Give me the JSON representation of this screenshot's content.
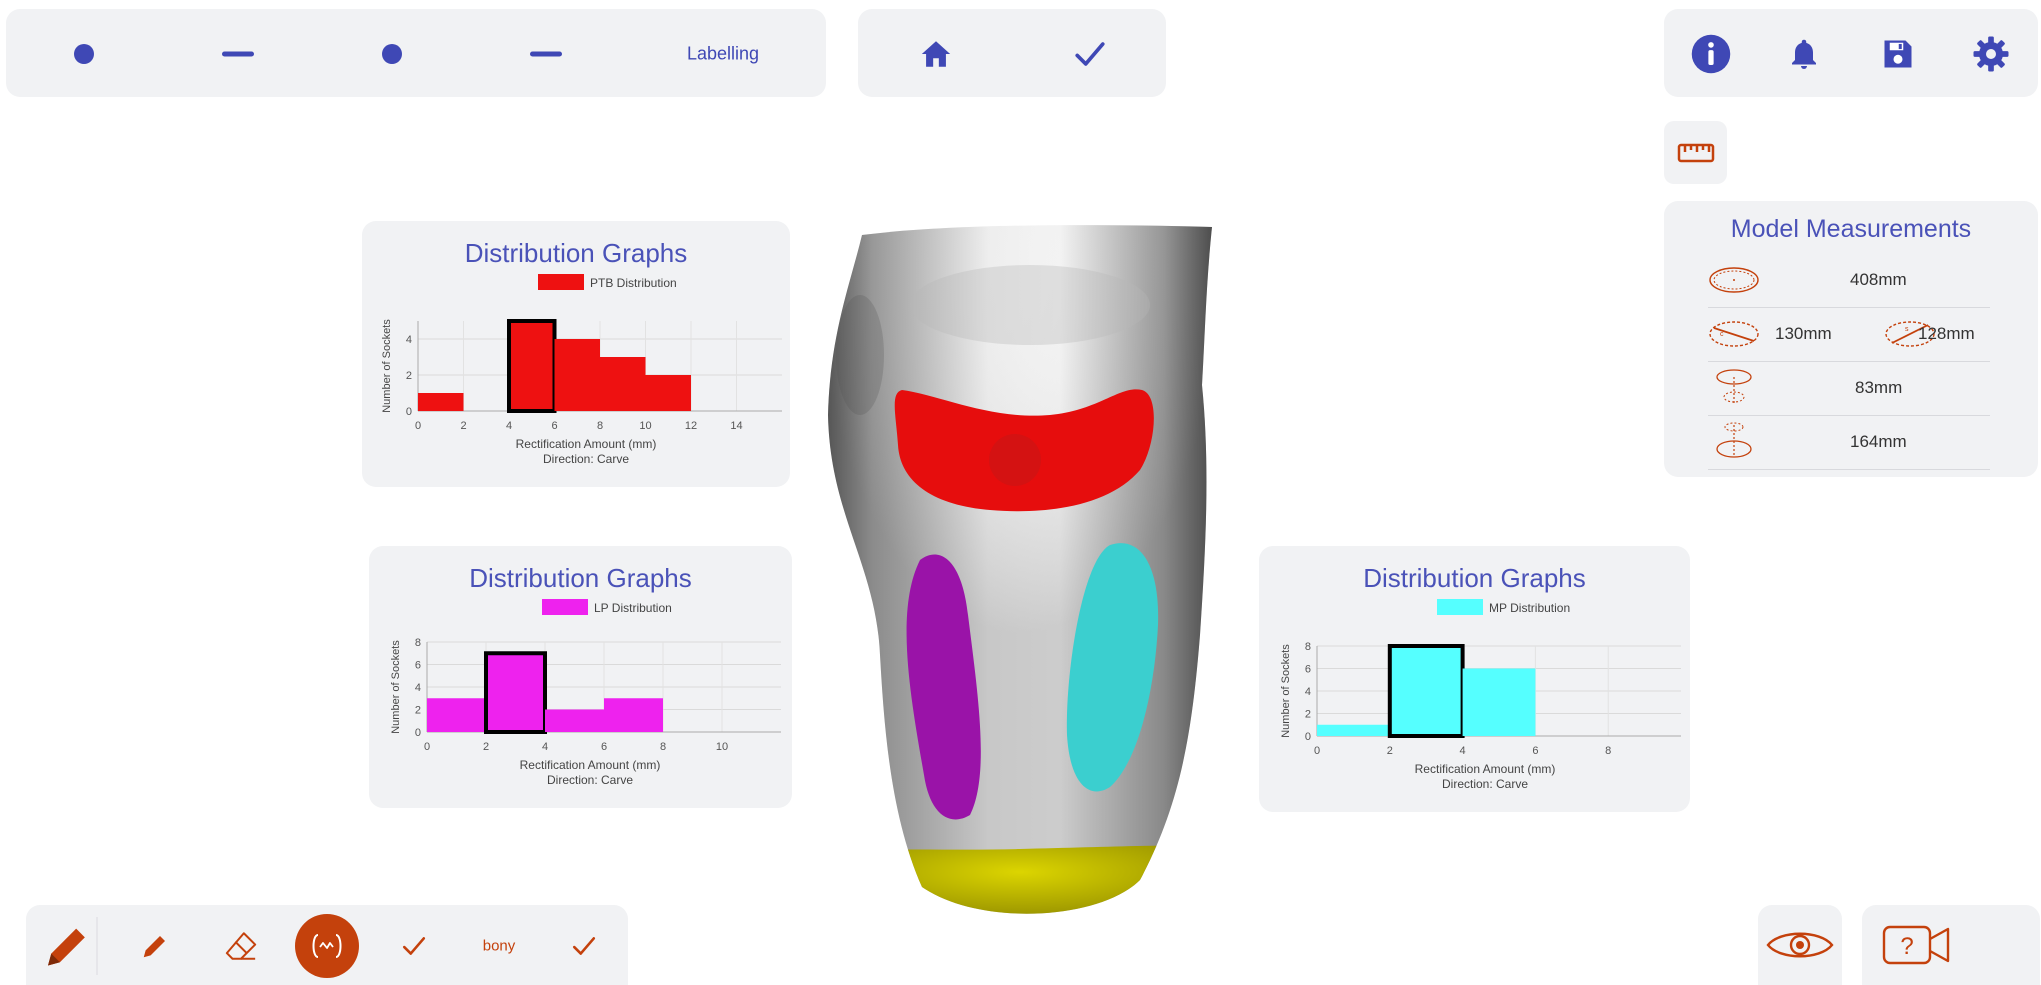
{
  "top_bar": {
    "steps": [
      "dot",
      "dash",
      "dot",
      "dash"
    ],
    "label": "Labelling"
  },
  "icons": {
    "home": "home-icon",
    "confirm": "check-icon",
    "info": "info-icon",
    "notifications": "bell-icon",
    "save": "save-icon",
    "settings": "gear-icon",
    "ruler": "ruler-icon",
    "visibility": "eye-icon",
    "help_video": "help-video-icon"
  },
  "bottom_toolbar": {
    "tools": [
      "pencil-large-icon",
      "pencil-small-icon",
      "eraser-icon",
      "region-select-icon",
      "check-icon"
    ],
    "label": "bony",
    "active_tool": "region-select-icon"
  },
  "colors": {
    "accent": "#3f48b5",
    "tool_orange": "#c4410c",
    "ptb": "#ee1111",
    "lp": "#ee22ee",
    "mp": "#55ffff",
    "highlight_border": "#000000",
    "panel_bg": "#f1f2f4"
  },
  "measurements": {
    "title": "Model Measurements",
    "rows": [
      {
        "values": [
          "408mm"
        ]
      },
      {
        "values": [
          "130mm",
          "128mm"
        ]
      },
      {
        "values": [
          "83mm"
        ]
      },
      {
        "values": [
          "164mm"
        ]
      }
    ]
  },
  "chart_data": [
    {
      "id": "ptb",
      "type": "bar",
      "title": "Distribution Graphs",
      "legend": "PTB Distribution",
      "color": "#ee1111",
      "xlabel": "Rectification Amount (mm)",
      "subtitle": "Direction: Carve",
      "ylabel": "Number of Sockets",
      "xticks": [
        0,
        2,
        4,
        6,
        8,
        10,
        12,
        14
      ],
      "yticks": [
        0,
        2,
        4
      ],
      "xlim": [
        0,
        16
      ],
      "ylim": [
        0,
        5
      ],
      "bins": [
        {
          "from": 0,
          "to": 2,
          "value": 1
        },
        {
          "from": 4,
          "to": 6,
          "value": 5,
          "highlight": true
        },
        {
          "from": 6,
          "to": 8,
          "value": 4
        },
        {
          "from": 8,
          "to": 10,
          "value": 3
        },
        {
          "from": 10,
          "to": 12,
          "value": 2
        }
      ]
    },
    {
      "id": "lp",
      "type": "bar",
      "title": "Distribution Graphs",
      "legend": "LP Distribution",
      "color": "#ee22ee",
      "xlabel": "Rectification Amount (mm)",
      "subtitle": "Direction: Carve",
      "ylabel": "Number of Sockets",
      "xticks": [
        0,
        2,
        4,
        6,
        8,
        10
      ],
      "yticks": [
        0,
        2,
        4,
        6,
        8
      ],
      "xlim": [
        0,
        12
      ],
      "ylim": [
        0,
        8
      ],
      "bins": [
        {
          "from": 0,
          "to": 2,
          "value": 3
        },
        {
          "from": 2,
          "to": 4,
          "value": 7,
          "highlight": true
        },
        {
          "from": 4,
          "to": 6,
          "value": 2
        },
        {
          "from": 6,
          "to": 8,
          "value": 3
        }
      ]
    },
    {
      "id": "mp",
      "type": "bar",
      "title": "Distribution Graphs",
      "legend": "MP Distribution",
      "color": "#55ffff",
      "xlabel": "Rectification Amount (mm)",
      "subtitle": "Direction: Carve",
      "ylabel": "Number of Sockets",
      "xticks": [
        0,
        2,
        4,
        6,
        8
      ],
      "yticks": [
        0,
        2,
        4,
        6,
        8
      ],
      "xlim": [
        0,
        10
      ],
      "ylim": [
        0,
        8
      ],
      "bins": [
        {
          "from": 0,
          "to": 2,
          "value": 1
        },
        {
          "from": 2,
          "to": 4,
          "value": 8,
          "highlight": true
        },
        {
          "from": 4,
          "to": 6,
          "value": 6
        }
      ]
    }
  ]
}
